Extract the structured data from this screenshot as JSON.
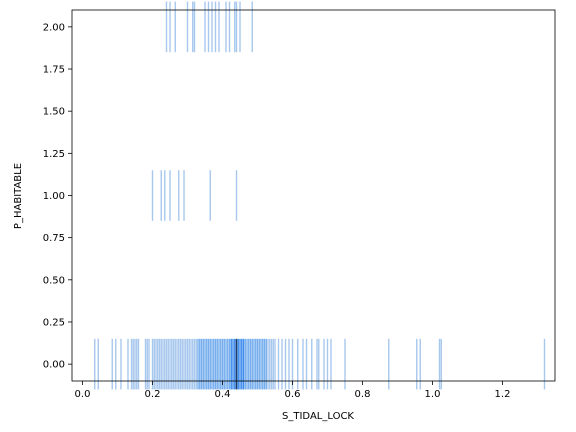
{
  "chart_data": {
    "type": "histogram-strip",
    "title": "",
    "xlabel": "S_TIDAL_LOCK",
    "ylabel": "P_HABITABLE",
    "xlim": [
      -0.03,
      1.35
    ],
    "ylim": [
      -0.1,
      2.1
    ],
    "xticks": [
      0.0,
      0.2,
      0.4,
      0.6,
      0.8,
      1.0,
      1.2
    ],
    "xtick_labels": [
      "0.0",
      "0.2",
      "0.4",
      "0.6",
      "0.8",
      "1.0",
      "1.2"
    ],
    "yticks": [
      0.0,
      0.25,
      0.5,
      0.75,
      1.0,
      1.25,
      1.5,
      1.75,
      2.0
    ],
    "ytick_labels": [
      "0.00",
      "0.25",
      "0.50",
      "0.75",
      "1.00",
      "1.25",
      "1.50",
      "1.75",
      "2.00"
    ],
    "grid": false,
    "colors": {
      "light": "#a7c8ee",
      "mid": "#75adee",
      "dense": "#3c8cee",
      "peak": "#1c3e6a"
    },
    "series": [
      {
        "y": 2.0,
        "x": [
          0.24,
          0.25,
          0.265,
          0.3,
          0.315,
          0.32,
          0.35,
          0.36,
          0.37,
          0.38,
          0.39,
          0.41,
          0.42,
          0.435,
          0.44,
          0.45,
          0.485
        ]
      },
      {
        "y": 1.0,
        "x": [
          0.2,
          0.225,
          0.235,
          0.25,
          0.275,
          0.29,
          0.365,
          0.44
        ]
      },
      {
        "y": 0.0,
        "x": [
          0.035,
          0.045,
          0.085,
          0.095,
          0.11,
          0.13,
          0.14,
          0.145,
          0.15,
          0.155,
          0.16,
          0.18,
          0.185,
          0.19,
          0.2,
          0.205,
          0.21,
          0.215,
          0.22,
          0.225,
          0.23,
          0.235,
          0.24,
          0.245,
          0.25,
          0.255,
          0.26,
          0.265,
          0.27,
          0.275,
          0.28,
          0.285,
          0.29,
          0.295,
          0.3,
          0.305,
          0.31,
          0.315,
          0.32,
          0.325,
          0.33,
          0.335,
          0.34,
          0.345,
          0.35,
          0.355,
          0.36,
          0.365,
          0.37,
          0.375,
          0.38,
          0.385,
          0.39,
          0.395,
          0.4,
          0.405,
          0.41,
          0.415,
          0.42,
          0.425,
          0.43,
          0.435,
          0.44,
          0.445,
          0.45,
          0.455,
          0.46,
          0.465,
          0.47,
          0.475,
          0.48,
          0.485,
          0.49,
          0.495,
          0.5,
          0.505,
          0.51,
          0.515,
          0.52,
          0.525,
          0.53,
          0.535,
          0.54,
          0.545,
          0.55,
          0.56,
          0.57,
          0.58,
          0.59,
          0.6,
          0.615,
          0.63,
          0.64,
          0.655,
          0.67,
          0.675,
          0.69,
          0.7,
          0.71,
          0.75,
          0.875,
          0.955,
          0.965,
          1.02,
          1.025,
          1.32
        ],
        "density": [
          1,
          1,
          1,
          1,
          1,
          1,
          1,
          1,
          1,
          1,
          1,
          1,
          1,
          1,
          1,
          1,
          1,
          1,
          1,
          1,
          1,
          1,
          1,
          1,
          1,
          1,
          1,
          1,
          1,
          1,
          1,
          1,
          1,
          1,
          1,
          1,
          1,
          1,
          1,
          1,
          2,
          2,
          2,
          2,
          2,
          2,
          2,
          2,
          2,
          2,
          2,
          2,
          2,
          2,
          2,
          2,
          2,
          2,
          2,
          3,
          3,
          3,
          4,
          3,
          3,
          3,
          3,
          2,
          2,
          2,
          2,
          2,
          2,
          2,
          2,
          2,
          2,
          2,
          2,
          2,
          1,
          1,
          1,
          1,
          1,
          1,
          1,
          1,
          1,
          1,
          1,
          1,
          1,
          1,
          1,
          1,
          1,
          1,
          1,
          1,
          1,
          1,
          1,
          1,
          1,
          1
        ]
      }
    ]
  }
}
